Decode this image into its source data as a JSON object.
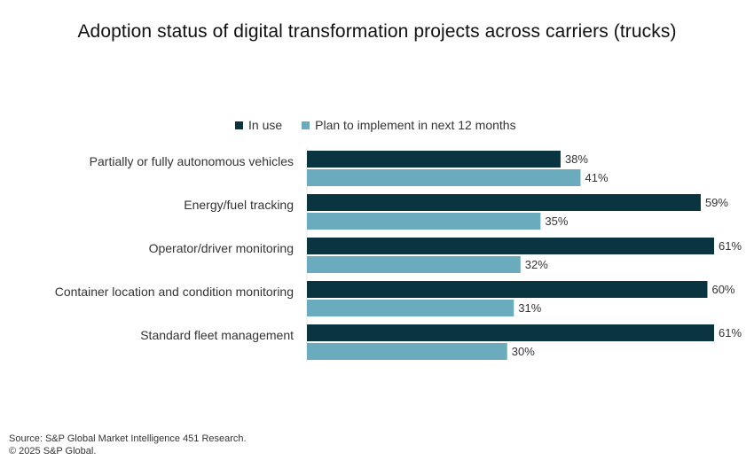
{
  "title": "Adoption status of digital transformation projects across carriers (trucks)",
  "legend": [
    {
      "label": "In use",
      "color": "#0b3441"
    },
    {
      "label": "Plan to implement in next 12 months",
      "color": "#6aacbd"
    }
  ],
  "chart_data": {
    "type": "bar",
    "orientation": "horizontal",
    "title": "Adoption status of digital transformation projects across carriers (trucks)",
    "categories": [
      "Partially or fully autonomous vehicles",
      "Energy/fuel tracking",
      "Operator/driver monitoring",
      "Container location and condition monitoring",
      "Standard fleet management"
    ],
    "series": [
      {
        "name": "In use",
        "color": "#0b3441",
        "values": [
          38,
          59,
          61,
          60,
          61
        ]
      },
      {
        "name": "Plan to implement in next 12 months",
        "color": "#6aacbd",
        "values": [
          41,
          35,
          32,
          31,
          30
        ]
      }
    ],
    "value_suffix": "%",
    "xlim": [
      0,
      61
    ],
    "grid": false,
    "legend_position": "top"
  },
  "footer": {
    "source": "Source: S&P Global Market Intelligence 451 Research.",
    "copyright": "© 2025 S&P Global."
  }
}
